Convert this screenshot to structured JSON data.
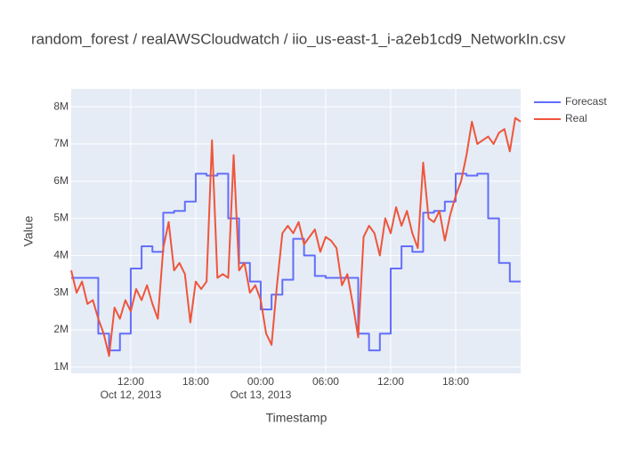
{
  "chart_data": {
    "type": "line",
    "title": "random_forest / realAWSCloudwatch / iio_us-east-1_i-a2eb1cd9_NetworkIn.csv",
    "x_label": "Timestamp",
    "y_label": "Value",
    "xlim": [
      "2013-10-12 06:30",
      "2013-10-14 00:00"
    ],
    "ylim": [
      830000,
      8480000
    ],
    "xticks": [
      {
        "value": "2013-10-12 12:00",
        "label": "12:00",
        "date": "Oct 12, 2013"
      },
      {
        "value": "2013-10-12 18:00",
        "label": "18:00"
      },
      {
        "value": "2013-10-13 00:00",
        "label": "00:00",
        "date": "Oct 13, 2013"
      },
      {
        "value": "2013-10-13 06:00",
        "label": "06:00"
      },
      {
        "value": "2013-10-13 12:00",
        "label": "12:00"
      },
      {
        "value": "2013-10-13 18:00",
        "label": "18:00"
      }
    ],
    "yticks": [
      {
        "value": 1000000,
        "label": "1M"
      },
      {
        "value": 2000000,
        "label": "2M"
      },
      {
        "value": 3000000,
        "label": "3M"
      },
      {
        "value": 4000000,
        "label": "4M"
      },
      {
        "value": 5000000,
        "label": "5M"
      },
      {
        "value": 6000000,
        "label": "6M"
      },
      {
        "value": 7000000,
        "label": "7M"
      },
      {
        "value": 8000000,
        "label": "8M"
      }
    ],
    "grid": true,
    "legend": "right",
    "series": [
      {
        "name": "Forecast",
        "color": "#636efa",
        "line_shape": "hv",
        "x": [
          "2013-10-12 06:30",
          "2013-10-12 07:00",
          "2013-10-12 08:00",
          "2013-10-12 09:00",
          "2013-10-12 10:00",
          "2013-10-12 11:00",
          "2013-10-12 12:00",
          "2013-10-12 13:00",
          "2013-10-12 14:00",
          "2013-10-12 15:00",
          "2013-10-12 16:00",
          "2013-10-12 17:00",
          "2013-10-12 18:00",
          "2013-10-12 19:00",
          "2013-10-12 20:00",
          "2013-10-12 21:00",
          "2013-10-12 22:00",
          "2013-10-12 23:00",
          "2013-10-13 00:00",
          "2013-10-13 01:00",
          "2013-10-13 02:00",
          "2013-10-13 03:00",
          "2013-10-13 04:00",
          "2013-10-13 05:00",
          "2013-10-13 06:00",
          "2013-10-13 07:00",
          "2013-10-13 08:00",
          "2013-10-13 09:00",
          "2013-10-13 10:00",
          "2013-10-13 11:00",
          "2013-10-13 12:00",
          "2013-10-13 13:00",
          "2013-10-13 14:00",
          "2013-10-13 15:00",
          "2013-10-13 16:00",
          "2013-10-13 17:00",
          "2013-10-13 18:00",
          "2013-10-13 19:00",
          "2013-10-13 20:00",
          "2013-10-13 21:00",
          "2013-10-13 22:00",
          "2013-10-13 23:00",
          "2013-10-14 00:00"
        ],
        "values": [
          3400000,
          3400000,
          3400000,
          1900000,
          1450000,
          1900000,
          3650000,
          4250000,
          4100000,
          5150000,
          5200000,
          5450000,
          6200000,
          6150000,
          6200000,
          5000000,
          3800000,
          3300000,
          2550000,
          2950000,
          3350000,
          4450000,
          4000000,
          3450000,
          3400000,
          3400000,
          3400000,
          1900000,
          1450000,
          1900000,
          3650000,
          4250000,
          4100000,
          5150000,
          5200000,
          5450000,
          6200000,
          6150000,
          6200000,
          5000000,
          3800000,
          3300000,
          3300000
        ]
      },
      {
        "name": "Real",
        "color": "#ef553b",
        "x": [
          "2013-10-12 06:30",
          "2013-10-12 07:00",
          "2013-10-12 07:30",
          "2013-10-12 08:00",
          "2013-10-12 08:30",
          "2013-10-12 09:00",
          "2013-10-12 09:30",
          "2013-10-12 10:00",
          "2013-10-12 10:30",
          "2013-10-12 11:00",
          "2013-10-12 11:30",
          "2013-10-12 12:00",
          "2013-10-12 12:30",
          "2013-10-12 13:00",
          "2013-10-12 13:30",
          "2013-10-12 14:00",
          "2013-10-12 14:30",
          "2013-10-12 15:00",
          "2013-10-12 15:30",
          "2013-10-12 16:00",
          "2013-10-12 16:30",
          "2013-10-12 17:00",
          "2013-10-12 17:30",
          "2013-10-12 18:00",
          "2013-10-12 18:30",
          "2013-10-12 19:00",
          "2013-10-12 19:30",
          "2013-10-12 20:00",
          "2013-10-12 20:30",
          "2013-10-12 21:00",
          "2013-10-12 21:30",
          "2013-10-12 22:00",
          "2013-10-12 22:30",
          "2013-10-12 23:00",
          "2013-10-12 23:30",
          "2013-10-13 00:00",
          "2013-10-13 00:30",
          "2013-10-13 01:00",
          "2013-10-13 01:30",
          "2013-10-13 02:00",
          "2013-10-13 02:30",
          "2013-10-13 03:00",
          "2013-10-13 03:30",
          "2013-10-13 04:00",
          "2013-10-13 04:30",
          "2013-10-13 05:00",
          "2013-10-13 05:30",
          "2013-10-13 06:00",
          "2013-10-13 06:30",
          "2013-10-13 07:00",
          "2013-10-13 07:30",
          "2013-10-13 08:00",
          "2013-10-13 08:30",
          "2013-10-13 09:00",
          "2013-10-13 09:30",
          "2013-10-13 10:00",
          "2013-10-13 10:30",
          "2013-10-13 11:00",
          "2013-10-13 11:30",
          "2013-10-13 12:00",
          "2013-10-13 12:30",
          "2013-10-13 13:00",
          "2013-10-13 13:30",
          "2013-10-13 14:00",
          "2013-10-13 14:30",
          "2013-10-13 15:00",
          "2013-10-13 15:30",
          "2013-10-13 16:00",
          "2013-10-13 16:30",
          "2013-10-13 17:00",
          "2013-10-13 17:30",
          "2013-10-13 18:00",
          "2013-10-13 18:30",
          "2013-10-13 19:00",
          "2013-10-13 19:30",
          "2013-10-13 20:00",
          "2013-10-13 20:30",
          "2013-10-13 21:00",
          "2013-10-13 21:30",
          "2013-10-13 22:00",
          "2013-10-13 22:30",
          "2013-10-13 23:00",
          "2013-10-13 23:30",
          "2013-10-14 00:00"
        ],
        "values": [
          3600000,
          3000000,
          3300000,
          2700000,
          2800000,
          2300000,
          1900000,
          1300000,
          2600000,
          2300000,
          2800000,
          2500000,
          3100000,
          2800000,
          3200000,
          2700000,
          2300000,
          4200000,
          4900000,
          3600000,
          3800000,
          3500000,
          2200000,
          3300000,
          3100000,
          3300000,
          7100000,
          3400000,
          3500000,
          3400000,
          6700000,
          3600000,
          3800000,
          3000000,
          3200000,
          2800000,
          1900000,
          1600000,
          3200000,
          4600000,
          4800000,
          4600000,
          4900000,
          4300000,
          4500000,
          4700000,
          4100000,
          4500000,
          4400000,
          4200000,
          3200000,
          3500000,
          2700000,
          1800000,
          4500000,
          4800000,
          4600000,
          4000000,
          5000000,
          4600000,
          5300000,
          4800000,
          5200000,
          4600000,
          4200000,
          6500000,
          5000000,
          4900000,
          5200000,
          4400000,
          5100000,
          5600000,
          6000000,
          6700000,
          7600000,
          7000000,
          7100000,
          7200000,
          7000000,
          7300000,
          7400000,
          6800000,
          7700000,
          7600000
        ]
      }
    ]
  }
}
